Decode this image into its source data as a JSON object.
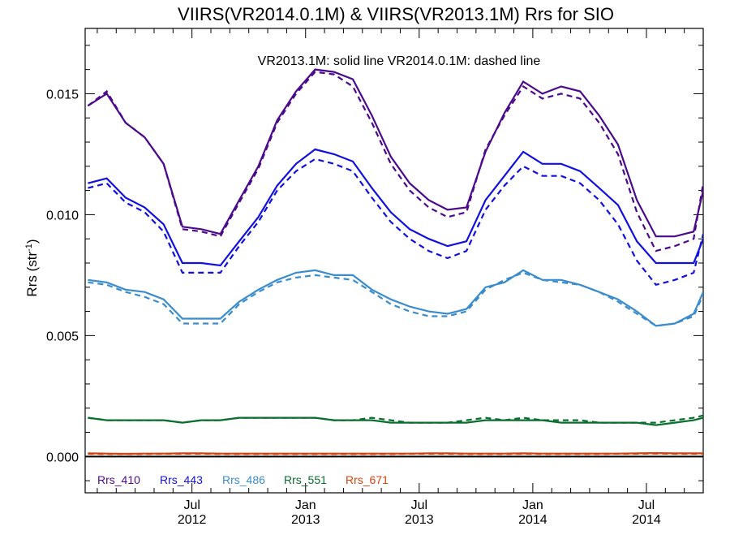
{
  "chart_data": {
    "type": "line",
    "title": "VIIRS(VR2014.0.1M) & VIIRS(VR2013.1M)  Rrs for SIO",
    "annotation": "VR2013.1M: solid line   VR2014.0.1M: dashed line",
    "ylabel": "Rrs (str",
    "ylabel_sup": "-1",
    "ylabel_end": ")",
    "ylim": [
      -0.0015,
      0.0177
    ],
    "xlim": [
      2012.03,
      2014.75
    ],
    "y_ticks": [
      {
        "value": 0.0,
        "label": "0.000"
      },
      {
        "value": 0.005,
        "label": "0.005"
      },
      {
        "value": 0.01,
        "label": "0.010"
      },
      {
        "value": 0.015,
        "label": "0.015"
      }
    ],
    "x_ticks": [
      {
        "value": 2012.5,
        "line1": "Jul",
        "line2": "2012"
      },
      {
        "value": 2013.0,
        "line1": "Jan",
        "line2": "2013"
      },
      {
        "value": 2013.5,
        "line1": "Jul",
        "line2": "2013"
      },
      {
        "value": 2014.0,
        "line1": "Jan",
        "line2": "2014"
      },
      {
        "value": 2014.5,
        "line1": "Jul",
        "line2": "2014"
      }
    ],
    "x": [
      2012.042,
      2012.125,
      2012.208,
      2012.292,
      2012.375,
      2012.458,
      2012.542,
      2012.625,
      2012.708,
      2012.792,
      2012.875,
      2012.958,
      2013.042,
      2013.125,
      2013.208,
      2013.292,
      2013.375,
      2013.458,
      2013.542,
      2013.625,
      2013.708,
      2013.792,
      2013.875,
      2013.958,
      2014.042,
      2014.125,
      2014.208,
      2014.292,
      2014.375,
      2014.458,
      2014.542,
      2014.625,
      2014.708,
      2014.75
    ],
    "series": [
      {
        "name": "Rrs_410",
        "color": "#4b0a8c",
        "solid": [
          0.0145,
          0.015,
          0.0138,
          0.0132,
          0.0121,
          0.0095,
          0.0094,
          0.0092,
          0.0106,
          0.012,
          0.0139,
          0.0151,
          0.016,
          0.0159,
          0.0156,
          0.0141,
          0.0124,
          0.0113,
          0.0106,
          0.0102,
          0.0103,
          0.0126,
          0.0142,
          0.0155,
          0.015,
          0.0153,
          0.0151,
          0.0141,
          0.0129,
          0.0106,
          0.0091,
          0.0091,
          0.0093,
          0.011
        ],
        "dashed": [
          0.0145,
          0.0151,
          0.0138,
          0.0132,
          0.0121,
          0.0094,
          0.0093,
          0.0091,
          0.0105,
          0.0119,
          0.0138,
          0.015,
          0.0159,
          0.0158,
          0.0153,
          0.0138,
          0.0121,
          0.011,
          0.0103,
          0.0099,
          0.0101,
          0.0127,
          0.0141,
          0.0153,
          0.0148,
          0.015,
          0.0148,
          0.0138,
          0.0125,
          0.0101,
          0.0085,
          0.0087,
          0.009,
          0.0113
        ]
      },
      {
        "name": "Rrs_443",
        "color": "#1010e0",
        "solid": [
          0.0113,
          0.0115,
          0.0107,
          0.0103,
          0.0096,
          0.008,
          0.008,
          0.0079,
          0.0089,
          0.0099,
          0.0112,
          0.0121,
          0.0127,
          0.0125,
          0.0122,
          0.0111,
          0.0101,
          0.0094,
          0.009,
          0.0087,
          0.0089,
          0.0106,
          0.0116,
          0.0126,
          0.0121,
          0.0121,
          0.0118,
          0.0111,
          0.0104,
          0.0089,
          0.008,
          0.008,
          0.008,
          0.009
        ],
        "dashed": [
          0.0111,
          0.0113,
          0.0105,
          0.0101,
          0.0093,
          0.0076,
          0.0076,
          0.0076,
          0.0087,
          0.0097,
          0.011,
          0.0118,
          0.0123,
          0.0121,
          0.0118,
          0.0107,
          0.0097,
          0.009,
          0.0085,
          0.0082,
          0.0085,
          0.0102,
          0.0112,
          0.012,
          0.0116,
          0.0116,
          0.0113,
          0.0106,
          0.0096,
          0.0081,
          0.0071,
          0.0073,
          0.0076,
          0.0092
        ]
      },
      {
        "name": "Rrs_486",
        "color": "#3a8ccc",
        "solid": [
          0.0073,
          0.0072,
          0.0069,
          0.0068,
          0.0065,
          0.0057,
          0.0057,
          0.0057,
          0.0064,
          0.0069,
          0.0073,
          0.0076,
          0.0077,
          0.0075,
          0.0075,
          0.0069,
          0.0065,
          0.0062,
          0.006,
          0.0059,
          0.0061,
          0.007,
          0.0072,
          0.0077,
          0.0073,
          0.0073,
          0.0071,
          0.0068,
          0.0065,
          0.006,
          0.0054,
          0.0055,
          0.0059,
          0.0068
        ],
        "dashed": [
          0.0072,
          0.0071,
          0.0068,
          0.0066,
          0.0063,
          0.0055,
          0.0055,
          0.0055,
          0.0063,
          0.0068,
          0.0072,
          0.0074,
          0.0075,
          0.0074,
          0.0073,
          0.0068,
          0.0063,
          0.006,
          0.0058,
          0.0058,
          0.006,
          0.0069,
          0.0073,
          0.0076,
          0.0073,
          0.0072,
          0.0071,
          0.0068,
          0.0064,
          0.0059,
          0.0054,
          0.0055,
          0.0058,
          0.0067
        ]
      },
      {
        "name": "Rrs_551",
        "color": "#0a6e2e",
        "solid": [
          0.0016,
          0.0015,
          0.0015,
          0.0015,
          0.0015,
          0.0014,
          0.0015,
          0.0015,
          0.0016,
          0.0016,
          0.0016,
          0.0016,
          0.0016,
          0.0015,
          0.0015,
          0.0015,
          0.0014,
          0.0014,
          0.0014,
          0.0014,
          0.0014,
          0.0015,
          0.0015,
          0.0015,
          0.0015,
          0.0014,
          0.0014,
          0.0014,
          0.0014,
          0.0014,
          0.0013,
          0.0014,
          0.0015,
          0.0016
        ],
        "dashed": [
          0.0016,
          0.0015,
          0.0015,
          0.0015,
          0.0015,
          0.0014,
          0.0015,
          0.0015,
          0.0016,
          0.0016,
          0.0016,
          0.0016,
          0.0016,
          0.0015,
          0.0015,
          0.0016,
          0.0015,
          0.0014,
          0.0014,
          0.0014,
          0.0015,
          0.0016,
          0.0015,
          0.0016,
          0.0015,
          0.0015,
          0.0015,
          0.0014,
          0.0014,
          0.0014,
          0.0014,
          0.0015,
          0.0016,
          0.0017
        ]
      },
      {
        "name": "Rrs_671",
        "color": "#d4420e",
        "solid": [
          0.00013,
          0.00012,
          0.00011,
          0.00012,
          0.00012,
          0.00013,
          0.00013,
          0.00012,
          0.00012,
          0.00012,
          0.00012,
          0.00012,
          0.00012,
          0.00012,
          0.00012,
          0.00012,
          0.00012,
          0.00012,
          0.00013,
          0.00013,
          0.00012,
          0.00012,
          0.00012,
          0.00013,
          0.00012,
          0.00012,
          0.00012,
          0.00012,
          0.00012,
          0.00013,
          0.00014,
          0.00013,
          0.00013,
          0.00013
        ],
        "dashed": [
          0.00011,
          0.0001,
          0.0001,
          0.0001,
          0.00011,
          0.00011,
          0.00011,
          0.0001,
          0.0001,
          0.0001,
          0.0001,
          0.0001,
          0.0001,
          0.0001,
          0.0001,
          0.0001,
          0.0001,
          0.00011,
          0.00011,
          0.00011,
          0.0001,
          0.0001,
          0.0001,
          0.00011,
          0.0001,
          0.0001,
          0.0001,
          0.0001,
          0.00011,
          0.00011,
          0.00012,
          0.00011,
          0.00011,
          0.00011
        ]
      }
    ],
    "zero_line": true,
    "grid": false,
    "legend_position": "bottom-left"
  }
}
